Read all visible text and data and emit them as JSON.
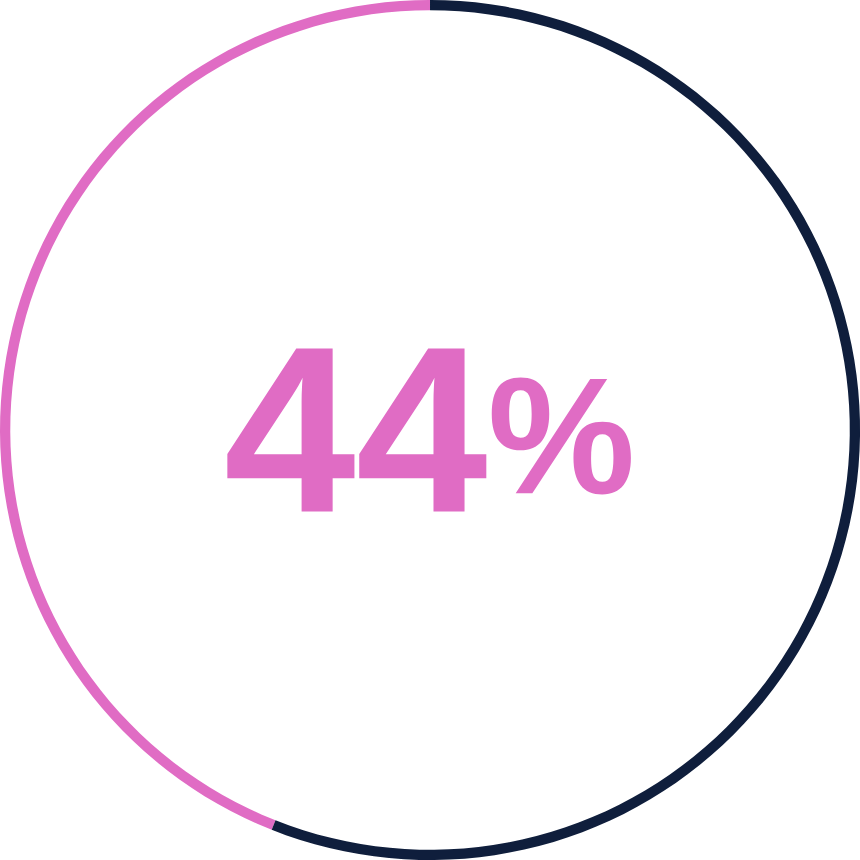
{
  "chart_data": {
    "type": "donut",
    "categories": [
      null,
      null
    ],
    "values": [
      44,
      56
    ],
    "colors": [
      "#e06cc4",
      "#0f1e3c"
    ],
    "annotations": [
      "44$^{%}$"
    ]
  }
}
